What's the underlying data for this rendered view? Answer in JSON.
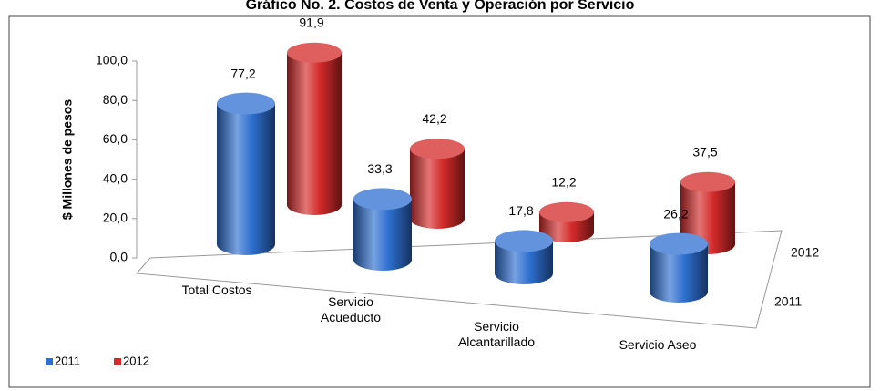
{
  "chart_data": {
    "type": "cylinder3d",
    "title": "Gráfico No. 2. Costos de Venta y Operación por Servicio",
    "y_label": "$ Millones de pesos",
    "categories": [
      "Total Costos",
      "Servicio Acueducto",
      "Servicio Alcantarillado",
      "Servicio Aseo"
    ],
    "series": [
      {
        "name": "2011",
        "color": "#2e6fd0",
        "values": [
          77.2,
          33.3,
          17.8,
          26.2
        ],
        "value_labels": [
          "77,2",
          "33,3",
          "17,8",
          "26,2"
        ]
      },
      {
        "name": "2012",
        "color": "#d42a2a",
        "values": [
          91.9,
          42.2,
          12.2,
          37.5
        ],
        "value_labels": [
          "91,9",
          "42,2",
          "12,2",
          "37,5"
        ]
      }
    ],
    "ylim": [
      0,
      100
    ],
    "yticks": [
      {
        "value": 0,
        "label": "0,0"
      },
      {
        "value": 20,
        "label": "20,0"
      },
      {
        "value": 40,
        "label": "40,0"
      },
      {
        "value": 60,
        "label": "60,0"
      },
      {
        "value": 80,
        "label": "80,0"
      },
      {
        "value": 100,
        "label": "100,0"
      }
    ],
    "legend": "bottom-left"
  }
}
